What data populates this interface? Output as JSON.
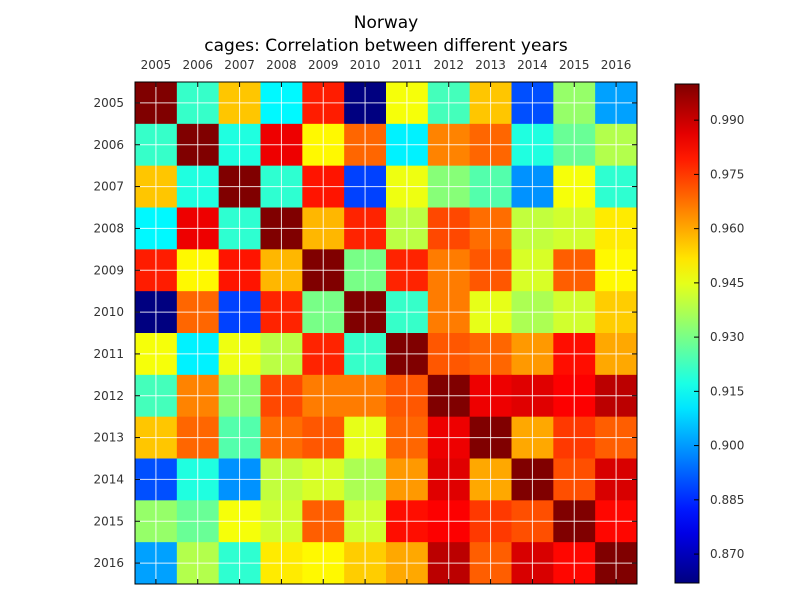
{
  "chart_data": {
    "type": "heatmap",
    "title": "Norway",
    "subtitle": "cages: Correlation between different years",
    "categories": [
      "2005",
      "2006",
      "2007",
      "2008",
      "2009",
      "2010",
      "2011",
      "2012",
      "2013",
      "2014",
      "2015",
      "2016"
    ],
    "x_axis_position": "top",
    "colormap": "jet",
    "colorbar": {
      "range": [
        0.862,
        1.0
      ],
      "ticks": [
        0.87,
        0.885,
        0.9,
        0.915,
        0.93,
        0.945,
        0.96,
        0.975,
        0.99
      ],
      "tick_labels": [
        "0.870",
        "0.885",
        "0.900",
        "0.915",
        "0.930",
        "0.945",
        "0.960",
        "0.975",
        "0.990"
      ]
    },
    "grid": true,
    "values": [
      [
        1.0,
        0.921,
        0.956,
        0.913,
        0.979,
        0.862,
        0.947,
        0.923,
        0.956,
        0.89,
        0.934,
        0.901
      ],
      [
        0.921,
        1.0,
        0.918,
        0.985,
        0.949,
        0.969,
        0.912,
        0.965,
        0.969,
        0.918,
        0.928,
        0.938
      ],
      [
        0.956,
        0.918,
        1.0,
        0.92,
        0.98,
        0.888,
        0.946,
        0.932,
        0.925,
        0.899,
        0.947,
        0.92
      ],
      [
        0.913,
        0.985,
        0.92,
        1.0,
        0.958,
        0.978,
        0.939,
        0.973,
        0.968,
        0.94,
        0.942,
        0.951
      ],
      [
        0.979,
        0.949,
        0.98,
        0.958,
        1.0,
        0.93,
        0.978,
        0.966,
        0.971,
        0.943,
        0.97,
        0.949
      ],
      [
        0.862,
        0.969,
        0.888,
        0.978,
        0.93,
        1.0,
        0.921,
        0.966,
        0.945,
        0.937,
        0.942,
        0.955
      ],
      [
        0.947,
        0.912,
        0.946,
        0.939,
        0.978,
        0.921,
        1.0,
        0.971,
        0.969,
        0.962,
        0.981,
        0.96
      ],
      [
        0.923,
        0.965,
        0.932,
        0.973,
        0.966,
        0.966,
        0.971,
        1.0,
        0.985,
        0.987,
        0.983,
        0.992
      ],
      [
        0.956,
        0.969,
        0.925,
        0.968,
        0.971,
        0.945,
        0.969,
        0.985,
        1.0,
        0.96,
        0.975,
        0.97
      ],
      [
        0.89,
        0.918,
        0.899,
        0.94,
        0.943,
        0.937,
        0.962,
        0.987,
        0.96,
        1.0,
        0.972,
        0.988
      ],
      [
        0.934,
        0.928,
        0.947,
        0.942,
        0.97,
        0.942,
        0.981,
        0.983,
        0.975,
        0.972,
        1.0,
        0.982
      ],
      [
        0.901,
        0.938,
        0.92,
        0.951,
        0.949,
        0.955,
        0.96,
        0.992,
        0.97,
        0.988,
        0.982,
        1.0
      ]
    ]
  }
}
